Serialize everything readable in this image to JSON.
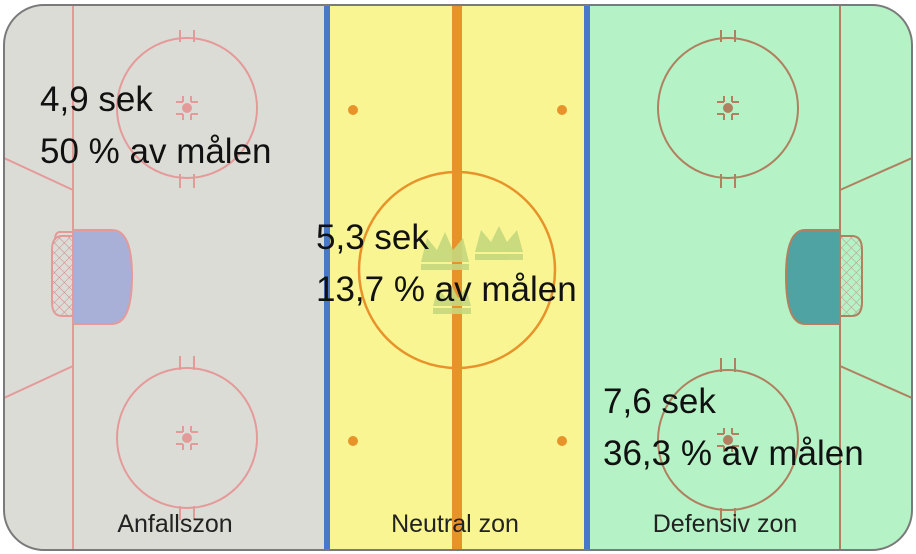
{
  "zones": [
    {
      "key": "anfallszon",
      "label": "Anfallszon",
      "time": "4,9 sek",
      "goals": "50 % av målen",
      "color": "#dcdcd6"
    },
    {
      "key": "neutral",
      "label": "Neutral zon",
      "time": "5,3 sek",
      "goals": "13,7 % av målen",
      "color": "#f8f592"
    },
    {
      "key": "defensiv",
      "label": "Defensiv zon",
      "time": "7,6 sek",
      "goals": "36,3 % av målen",
      "color": "#b5f2c6"
    }
  ],
  "colors": {
    "board": "#7a7a7a",
    "blue_line": "#4a78c8",
    "center_line": "#e8922a",
    "red_marking_left": "#e59a9a",
    "brown_marking_right": "#b08060",
    "orange_marking_center": "#e8922a",
    "goal_crease_left": "#a8b0d8",
    "goal_crease_right": "#4fa3a3",
    "logo_watermark": "#c6d87e"
  },
  "icons": {
    "center_logo": "three-crowns-icon"
  }
}
